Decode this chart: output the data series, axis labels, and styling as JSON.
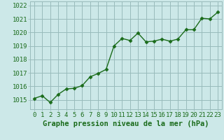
{
  "x": [
    0,
    1,
    2,
    3,
    4,
    5,
    6,
    7,
    8,
    9,
    10,
    11,
    12,
    13,
    14,
    15,
    16,
    17,
    18,
    19,
    20,
    21,
    22,
    23
  ],
  "y": [
    1015.1,
    1015.3,
    1014.8,
    1015.4,
    1015.8,
    1015.85,
    1016.05,
    1016.7,
    1016.95,
    1017.25,
    1019.0,
    1019.55,
    1019.4,
    1019.95,
    1019.3,
    1019.35,
    1019.5,
    1019.35,
    1019.5,
    1020.2,
    1020.2,
    1021.05,
    1021.0,
    1021.5
  ],
  "line_color": "#1a6b1a",
  "marker": "D",
  "marker_size": 2.5,
  "marker_color": "#1a6b1a",
  "bg_color": "#cce8e8",
  "grid_color": "#99bbbb",
  "ylabel_ticks": [
    1015,
    1016,
    1017,
    1018,
    1019,
    1020,
    1021,
    1022
  ],
  "xlabel_label": "Graphe pression niveau de la mer (hPa)",
  "xlabel_color": "#1a6b1a",
  "xlabel_fontsize": 7.5,
  "ylim": [
    1014.3,
    1022.3
  ],
  "xlim": [
    -0.5,
    23.5
  ],
  "tick_label_color": "#1a6b1a",
  "tick_label_fontsize": 6.5,
  "linewidth": 1.0
}
